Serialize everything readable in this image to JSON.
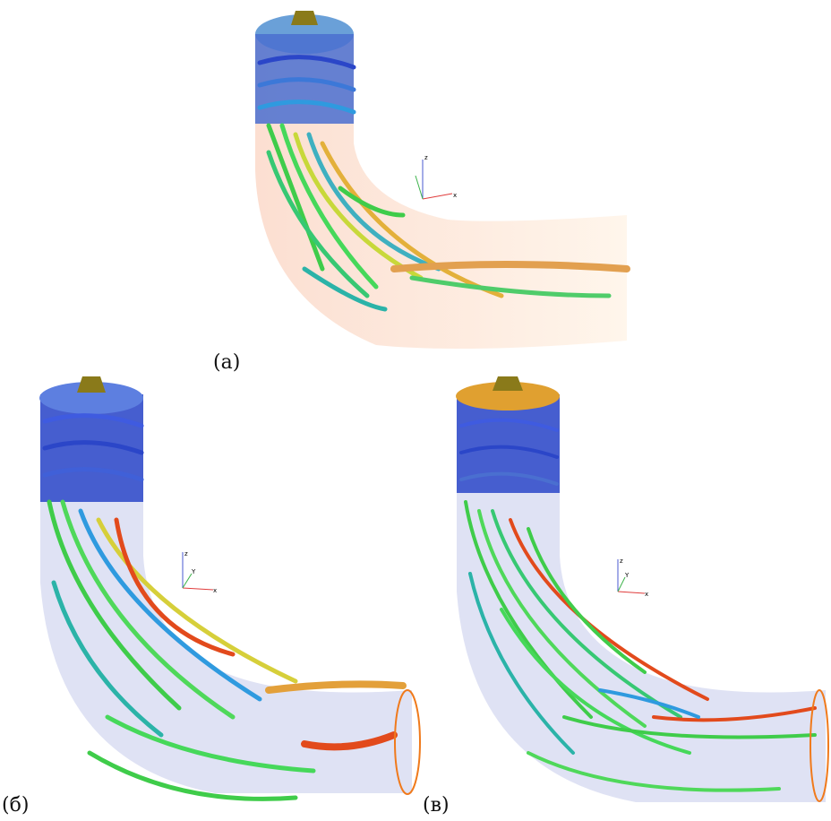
{
  "panels": [
    {
      "id": "a",
      "caption": "(a)"
    },
    {
      "id": "b",
      "caption": "(б)"
    },
    {
      "id": "c",
      "caption": "(в)"
    }
  ],
  "axes_labels": {
    "x": "x",
    "y": "Y",
    "z": "z"
  },
  "colors": {
    "pipe_panel_a": "#fde3d6",
    "pipe_panels_bc": "#dcdff3",
    "vortex_blue": "#2b46c8",
    "vortex_green": "#3fcc4a",
    "vortex_yellow": "#e3d63a",
    "vortex_red": "#e24a1c",
    "outlet_ring": "#f07a1c",
    "runner_hub": "#8a7a1a"
  }
}
